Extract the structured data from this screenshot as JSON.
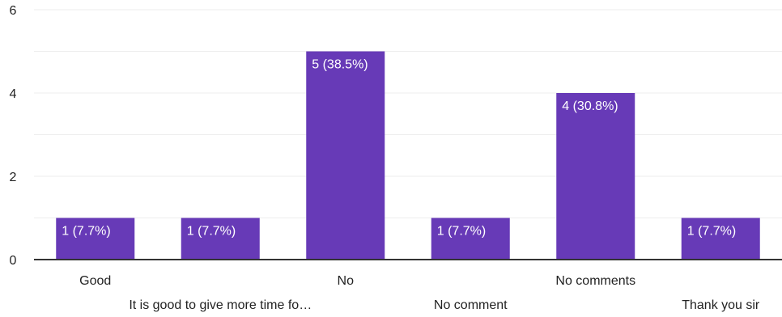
{
  "chart_data": {
    "type": "bar",
    "categories": [
      "Good",
      "It is good to give more time fo…",
      "No",
      "No comment",
      "No comments",
      "Thank you sir"
    ],
    "values": [
      1,
      1,
      5,
      1,
      4,
      1
    ],
    "data_labels": [
      "1 (7.7%)",
      "1 (7.7%)",
      "5 (38.5%)",
      "1 (7.7%)",
      "4 (30.8%)",
      "1 (7.7%)"
    ],
    "ylim": [
      0,
      6
    ],
    "yticks": [
      0,
      2,
      4,
      6
    ],
    "grid": true,
    "bar_color": "#673ab7"
  }
}
